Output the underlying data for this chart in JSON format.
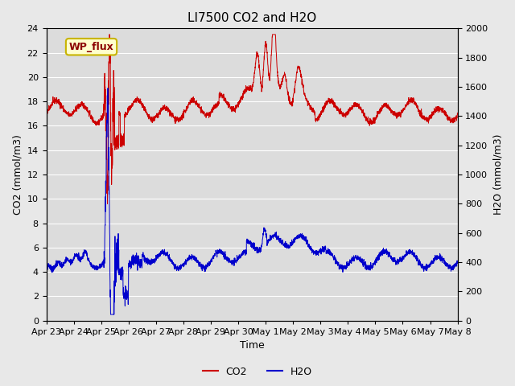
{
  "title": "LI7500 CO2 and H2O",
  "xlabel": "Time",
  "ylabel_left": "CO2 (mmol/m3)",
  "ylabel_right": "H2O (mmol/m3)",
  "ylim_left": [
    0,
    24
  ],
  "ylim_right": [
    0,
    2000
  ],
  "yticks_left": [
    0,
    2,
    4,
    6,
    8,
    10,
    12,
    14,
    16,
    18,
    20,
    22,
    24
  ],
  "yticks_right": [
    0,
    200,
    400,
    600,
    800,
    1000,
    1200,
    1400,
    1600,
    1800,
    2000
  ],
  "co2_color": "#cc0000",
  "h2o_color": "#0000cc",
  "fig_facecolor": "#e8e8e8",
  "plot_facecolor": "#dcdcdc",
  "grid_color": "#ffffff",
  "legend_label_co2": "CO2",
  "legend_label_h2o": "H2O",
  "annotation_text": "WP_flux",
  "title_fontsize": 11,
  "axis_fontsize": 9,
  "tick_fontsize": 8,
  "legend_fontsize": 9,
  "annotation_fontsize": 9,
  "tick_labels": [
    "Apr 23",
    "Apr 24",
    "Apr 25",
    "Apr 26",
    "Apr 27",
    "Apr 28",
    "Apr 29",
    "Apr 30",
    "May 1",
    "May 2",
    "May 3",
    "May 4",
    "May 5",
    "May 6",
    "May 7",
    "May 8"
  ]
}
